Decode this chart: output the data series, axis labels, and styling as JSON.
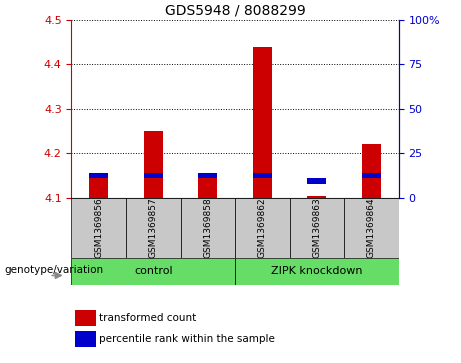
{
  "title": "GDS5948 / 8088299",
  "samples": [
    "GSM1369856",
    "GSM1369857",
    "GSM1369858",
    "GSM1369862",
    "GSM1369863",
    "GSM1369864"
  ],
  "groups": [
    {
      "label": "control",
      "indices": [
        0,
        1,
        2
      ]
    },
    {
      "label": "ZIPK knockdown",
      "indices": [
        3,
        4,
        5
      ]
    }
  ],
  "red_bar_bottoms": [
    4.1,
    4.1,
    4.1,
    4.1,
    4.1,
    4.1
  ],
  "red_bar_tops": [
    4.15,
    4.25,
    4.15,
    4.44,
    4.105,
    4.22
  ],
  "blue_bar_bottoms": [
    4.145,
    4.145,
    4.145,
    4.145,
    4.13,
    4.145
  ],
  "blue_bar_tops": [
    4.155,
    4.155,
    4.155,
    4.155,
    4.145,
    4.155
  ],
  "ylim_left": [
    4.1,
    4.5
  ],
  "ylim_right": [
    0,
    100
  ],
  "yticks_left": [
    4.1,
    4.2,
    4.3,
    4.4,
    4.5
  ],
  "yticks_right": [
    0,
    25,
    50,
    75,
    100
  ],
  "ytick_labels_right": [
    "0",
    "25",
    "50",
    "75",
    "100%"
  ],
  "left_axis_color": "#CC0000",
  "right_axis_color": "#0000CC",
  "bar_width": 0.35,
  "red_color": "#CC0000",
  "blue_color": "#0000CC",
  "bg_gray": "#C8C8C8",
  "bg_green": "#66DD66",
  "legend_red_label": "transformed count",
  "legend_blue_label": "percentile rank within the sample",
  "group_label_text": "genotype/variation"
}
